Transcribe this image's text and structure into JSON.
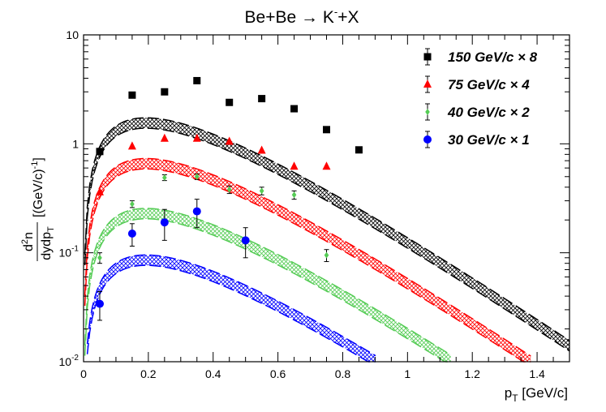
{
  "chart_data": {
    "type": "scatter",
    "title": "Be+Be → K⁻+X",
    "title_parts": {
      "reaction": "Be+Be",
      "arrow": "→",
      "particle": "K",
      "charge": "-",
      "rest": "+X"
    },
    "xlabel": {
      "main": "p",
      "sub": "T",
      "unit": " [GeV/c]"
    },
    "ylabel": {
      "num_d": "d",
      "num_sup": "2",
      "num_n": "n",
      "den": "dydp",
      "den_sub": "T",
      "unit_open": " [(GeV/c)",
      "unit_sup": "-1",
      "unit_close": "]"
    },
    "xlim": [
      0,
      1.5
    ],
    "ylim": [
      0.01,
      10
    ],
    "yscale": "log",
    "xticks": [
      0,
      0.2,
      0.4,
      0.6,
      0.8,
      1,
      1.2,
      1.4
    ],
    "xtick_labels": [
      "0",
      "0.2",
      "0.4",
      "0.6",
      "0.8",
      "1",
      "1.2",
      "1.4"
    ],
    "yticks": [
      {
        "value": 0.01,
        "base": "10",
        "exp": "-2"
      },
      {
        "value": 0.1,
        "base": "10",
        "exp": "-1"
      },
      {
        "value": 1,
        "base": "1",
        "exp": ""
      },
      {
        "value": 10,
        "base": "10",
        "exp": ""
      }
    ],
    "legend_position": "top-right",
    "series": [
      {
        "name": "150 GeV/c × 8",
        "energy": "150 GeV/c",
        "scale": "× 8",
        "color": "#000000",
        "marker": "square",
        "x": [
          0.05,
          0.15,
          0.25,
          0.35,
          0.45,
          0.55,
          0.65,
          0.75,
          0.85
        ],
        "y": [
          0.85,
          2.8,
          3.0,
          3.8,
          2.4,
          2.6,
          2.1,
          1.35,
          0.88
        ],
        "yerr": [
          0.0,
          0.0,
          0.0,
          0.0,
          0.0,
          0.0,
          0.0,
          0.0,
          0.0
        ],
        "curve": {
          "amp": 7.8,
          "temp": 0.2
        }
      },
      {
        "name": "75 GeV/c × 4",
        "energy": "75 GeV/c",
        "scale": "× 4",
        "color": "#ff0000",
        "marker": "triangle",
        "x": [
          0.05,
          0.15,
          0.25,
          0.35,
          0.45,
          0.55,
          0.65,
          0.75
        ],
        "y": [
          0.36,
          0.95,
          1.12,
          1.12,
          1.05,
          0.87,
          0.62,
          0.62
        ],
        "yerr": [
          0.0,
          0.0,
          0.0,
          0.0,
          0.0,
          0.0,
          0.0,
          0.0
        ],
        "curve": {
          "amp": 3.3,
          "temp": 0.2
        }
      },
      {
        "name": "40 GeV/c × 2",
        "energy": "40 GeV/c",
        "scale": "× 2",
        "color": "#55cc55",
        "marker": "diamond",
        "x": [
          0.05,
          0.15,
          0.25,
          0.35,
          0.45,
          0.55,
          0.65,
          0.75
        ],
        "y": [
          0.09,
          0.28,
          0.49,
          0.5,
          0.38,
          0.37,
          0.34,
          0.095
        ],
        "yerr": [
          0.01,
          0.02,
          0.03,
          0.03,
          0.03,
          0.03,
          0.03,
          0.012
        ],
        "curve": {
          "amp": 1.15,
          "temp": 0.2
        }
      },
      {
        "name": "30 GeV/c × 1",
        "energy": "30 GeV/c",
        "scale": "× 1",
        "color": "#0000ff",
        "marker": "circle",
        "x": [
          0.05,
          0.15,
          0.25,
          0.35,
          0.5
        ],
        "y": [
          0.034,
          0.15,
          0.19,
          0.24,
          0.13
        ],
        "yerr": [
          0.01,
          0.035,
          0.06,
          0.07,
          0.04
        ],
        "curve": {
          "amp": 0.43,
          "temp": 0.2
        }
      }
    ]
  }
}
